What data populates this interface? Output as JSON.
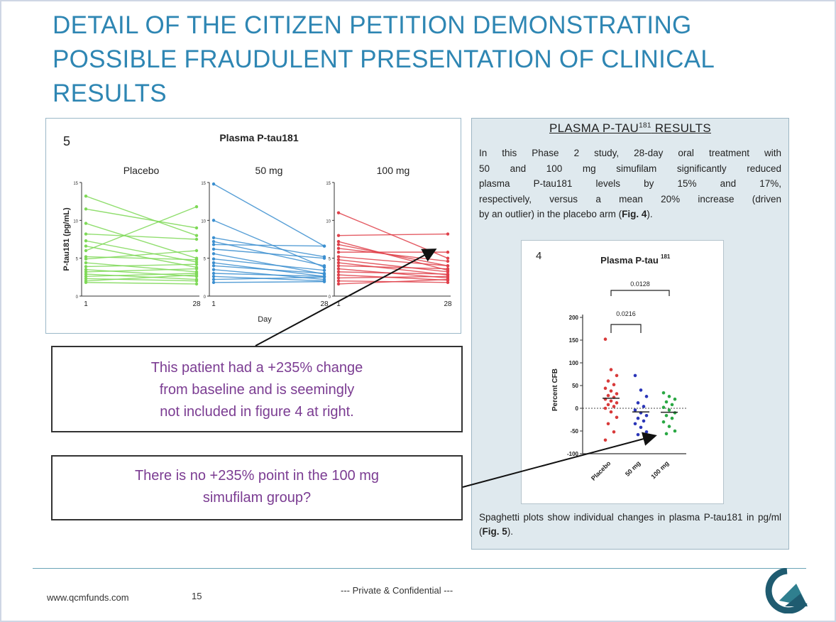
{
  "title": {
    "line1": "DETAIL OF THE CITIZEN PETITION DEMONSTRATING",
    "line2": "POSSIBLE FRAUDULENT PRESENTATION OF CLINICAL",
    "line3": "RESULTS"
  },
  "figure5": {
    "panel_number": "5",
    "title": "Plasma P-tau181",
    "groups": [
      "Placebo",
      "50 mg",
      "100 mg"
    ],
    "ylabel": "P-tau181 (pg/mL)",
    "xlabel": "Day",
    "x_ticks": [
      "1",
      "28"
    ],
    "y_ticks": [
      "0",
      "5",
      "10",
      "15"
    ],
    "colors": {
      "placebo": "#7ed957",
      "mg50": "#3b8fd0",
      "mg100": "#e0404a"
    }
  },
  "chart_data": [
    {
      "type": "line",
      "title": "Plasma P-tau181",
      "xlabel": "Day",
      "ylabel": "P-tau181 (pg/mL)",
      "x": [
        1,
        28
      ],
      "ylim": [
        0,
        15
      ],
      "series": [
        {
          "name": "Placebo",
          "lines": [
            [
              13.2,
              8.0
            ],
            [
              11.5,
              9.0
            ],
            [
              9.6,
              5.0
            ],
            [
              8.2,
              7.5
            ],
            [
              7.3,
              4.5
            ],
            [
              6.6,
              3.8
            ],
            [
              6.0,
              11.8
            ],
            [
              5.2,
              4.8
            ],
            [
              4.9,
              6.0
            ],
            [
              4.4,
              3.2
            ],
            [
              3.9,
              4.2
            ],
            [
              3.5,
              2.6
            ],
            [
              3.2,
              3.6
            ],
            [
              2.9,
              2.2
            ],
            [
              2.6,
              3.0
            ],
            [
              2.3,
              2.0
            ],
            [
              2.0,
              2.8
            ],
            [
              1.8,
              1.6
            ]
          ]
        },
        {
          "name": "50 mg",
          "lines": [
            [
              14.8,
              6.6
            ],
            [
              10.0,
              3.8
            ],
            [
              7.7,
              5.2
            ],
            [
              7.2,
              4.0
            ],
            [
              6.8,
              6.6
            ],
            [
              6.2,
              5.0
            ],
            [
              5.6,
              2.9
            ],
            [
              4.9,
              3.4
            ],
            [
              4.4,
              2.6
            ],
            [
              4.0,
              3.0
            ],
            [
              3.5,
              2.2
            ],
            [
              3.0,
              2.6
            ],
            [
              2.6,
              2.0
            ],
            [
              2.2,
              2.5
            ],
            [
              1.8,
              1.9
            ]
          ]
        },
        {
          "name": "100 mg",
          "lines": [
            [
              11.0,
              5.0
            ],
            [
              8.0,
              8.2
            ],
            [
              7.2,
              3.4
            ],
            [
              6.8,
              4.0
            ],
            [
              6.3,
              4.6
            ],
            [
              5.8,
              5.8
            ],
            [
              5.2,
              4.0
            ],
            [
              4.8,
              3.2
            ],
            [
              4.4,
              2.8
            ],
            [
              4.0,
              3.6
            ],
            [
              3.6,
              2.4
            ],
            [
              3.2,
              2.9
            ],
            [
              2.8,
              2.1
            ],
            [
              2.4,
              2.6
            ],
            [
              2.0,
              1.8
            ],
            [
              1.6,
              2.2
            ]
          ]
        }
      ]
    },
    {
      "type": "scatter",
      "title": "Plasma P-tau181",
      "ylabel": "Percent CFB",
      "categories": [
        "Placebo",
        "50 mg",
        "100 mg"
      ],
      "ylim": [
        -100,
        200
      ],
      "series": [
        {
          "name": "Placebo",
          "values": [
            152,
            85,
            72,
            60,
            52,
            44,
            38,
            32,
            28,
            24,
            20,
            16,
            12,
            8,
            4,
            0,
            -8,
            -20,
            -34,
            -52,
            -70
          ]
        },
        {
          "name": "50 mg",
          "values": [
            72,
            40,
            26,
            12,
            4,
            -4,
            -10,
            -16,
            -22,
            -28,
            -34,
            -42,
            -52,
            -58
          ]
        },
        {
          "name": "100 mg",
          "values": [
            34,
            26,
            20,
            14,
            8,
            2,
            -4,
            -10,
            -16,
            -22,
            -30,
            -40,
            -50,
            -56
          ]
        }
      ],
      "annotations": [
        "0.0128",
        "0.0216"
      ]
    }
  ],
  "panel": {
    "heading_main": "PLASMA P-TAU",
    "heading_sup": "181",
    "heading_tail": " RESULTS",
    "body_lines": [
      "In this Phase 2 study, 28-day oral treatment with",
      "50 and 100 mg simufilam significantly reduced",
      "plasma P-tau181 levels by 15% and 17%,",
      "respectively, versus a mean 20% increase (driven"
    ],
    "body_last_pre": "by an outlier) in the placebo arm (",
    "body_last_bold": "Fig. 4",
    "body_last_post": ").",
    "caption_pre": "Spaghetti plots show individual changes in plasma P-tau181 in pg/ml (",
    "caption_bold": "Fig. 5",
    "caption_post": ")."
  },
  "figure4": {
    "panel_number": "4",
    "title_main": "Plasma P-tau",
    "title_sup": "181",
    "ylabel": "Percent CFB",
    "y_ticks": [
      "200",
      "150",
      "100",
      "50",
      "0",
      "-50",
      "-100"
    ],
    "categories": [
      "Placebo",
      "50 mg",
      "100 mg"
    ],
    "pvalue_top": "0.0128",
    "pvalue_inner": "0.0216",
    "colors": {
      "placebo": "#d83a3a",
      "mg50": "#2b36b8",
      "mg100": "#2aa844"
    }
  },
  "callouts": {
    "first_lines": [
      "This patient had a +235% change",
      "from baseline and is seemingly",
      "not included in figure 4 at right."
    ],
    "second_lines": [
      "There is no +235% point in the 100 mg",
      "simufilam group?"
    ]
  },
  "footer": {
    "url": "www.qcmfunds.com",
    "page": "15",
    "confidential": "--- Private & Confidential ---"
  }
}
